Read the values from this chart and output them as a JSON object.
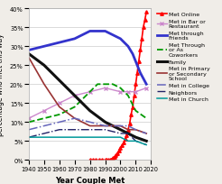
{
  "title": "",
  "xlabel": "Year Couple Met",
  "ylabel": "percentage who met this way",
  "xlim": [
    1940,
    2020
  ],
  "ylim": [
    0,
    40
  ],
  "yticks": [
    0,
    5,
    10,
    15,
    20,
    25,
    30,
    35,
    40
  ],
  "xticks": [
    1940,
    1950,
    1960,
    1970,
    1980,
    1990,
    2000,
    2010,
    2020
  ],
  "series": [
    {
      "label": "Met Online",
      "color": "#FF0000",
      "linestyle": "-",
      "marker": "^",
      "markersize": 2.5,
      "linewidth": 1.2,
      "x": [
        1980,
        1982,
        1984,
        1986,
        1988,
        1990,
        1991,
        1992,
        1993,
        1994,
        1995,
        1996,
        1997,
        1998,
        1999,
        2000,
        2001,
        2002,
        2003,
        2004,
        2005,
        2006,
        2007,
        2008,
        2009,
        2010,
        2011,
        2012,
        2013,
        2014,
        2015,
        2016,
        2017
      ],
      "y": [
        0,
        0,
        0,
        0,
        0,
        0,
        0,
        0,
        0,
        0.2,
        0.5,
        0.8,
        1.2,
        1.8,
        2.5,
        3.2,
        3.8,
        4.5,
        5.5,
        6.5,
        8,
        9.5,
        12,
        14,
        17,
        20,
        23,
        26,
        29,
        32,
        35,
        37,
        39
      ]
    },
    {
      "label": "Met in Bar or\nRestaurant",
      "color": "#CC88CC",
      "linestyle": "-",
      "marker": "x",
      "markersize": 2.5,
      "linewidth": 1.0,
      "x": [
        1940,
        1950,
        1960,
        1970,
        1980,
        1990,
        2000,
        2005,
        2010,
        2017
      ],
      "y": [
        11,
        13,
        15,
        17,
        18,
        19,
        18,
        18,
        18,
        19
      ]
    },
    {
      "label": "Met through\nFriends",
      "color": "#3333CC",
      "linestyle": "-",
      "marker": null,
      "markersize": 0,
      "linewidth": 2.0,
      "x": [
        1940,
        1950,
        1960,
        1970,
        1975,
        1980,
        1985,
        1990,
        1995,
        2000,
        2005,
        2008,
        2010,
        2013,
        2017
      ],
      "y": [
        29,
        30,
        31,
        32,
        33,
        34,
        34,
        34,
        33,
        32,
        30,
        28,
        26,
        23,
        20
      ]
    },
    {
      "label": "Met Through\nor As\nCoworkers",
      "color": "#009900",
      "linestyle": "--",
      "marker": null,
      "markersize": 0,
      "linewidth": 1.3,
      "x": [
        1940,
        1950,
        1960,
        1970,
        1975,
        1980,
        1985,
        1990,
        1995,
        2000,
        2005,
        2010,
        2017
      ],
      "y": [
        10,
        11,
        12,
        14,
        16,
        18,
        20,
        20,
        20,
        19,
        17,
        13,
        11
      ]
    },
    {
      "label": "Family",
      "color": "#111111",
      "linestyle": "-",
      "marker": null,
      "markersize": 0,
      "linewidth": 2.2,
      "x": [
        1940,
        1950,
        1960,
        1970,
        1980,
        1990,
        2000,
        2005,
        2010,
        2017
      ],
      "y": [
        28,
        25,
        21,
        17,
        13,
        10,
        8,
        7,
        6,
        5
      ]
    },
    {
      "label": "Met in Primary\nor Secondary\nSchool",
      "color": "#993333",
      "linestyle": "-",
      "marker": null,
      "markersize": 0,
      "linewidth": 1.2,
      "x": [
        1940,
        1950,
        1960,
        1970,
        1980,
        1990,
        2000,
        2005,
        2010,
        2017
      ],
      "y": [
        27,
        20,
        14,
        11,
        9,
        9,
        9,
        8,
        8,
        7
      ]
    },
    {
      "label": "Met in College",
      "color": "#6666BB",
      "linestyle": "-.",
      "marker": null,
      "markersize": 0,
      "linewidth": 1.1,
      "x": [
        1940,
        1950,
        1960,
        1970,
        1980,
        1990,
        2000,
        2005,
        2010,
        2017
      ],
      "y": [
        8,
        9,
        10,
        11,
        10,
        9,
        9,
        9,
        8,
        7
      ]
    },
    {
      "label": "Neighbors",
      "color": "#222266",
      "linestyle": "-.",
      "marker": null,
      "markersize": 0,
      "linewidth": 1.0,
      "x": [
        1940,
        1950,
        1960,
        1970,
        1980,
        1990,
        2000,
        2005,
        2010,
        2017
      ],
      "y": [
        6,
        7,
        8,
        8,
        8,
        8,
        7,
        7,
        5,
        4
      ]
    },
    {
      "label": "Met in Church",
      "color": "#009999",
      "linestyle": "-",
      "marker": null,
      "markersize": 0,
      "linewidth": 1.1,
      "x": [
        1940,
        1950,
        1960,
        1970,
        1980,
        1990,
        2000,
        2005,
        2010,
        2017
      ],
      "y": [
        6,
        6,
        6,
        6,
        6,
        6,
        6,
        5,
        5,
        4
      ]
    }
  ],
  "bg_color": "#f0ede8",
  "plot_bg": "#ffffff",
  "legend_fontsize": 4.5,
  "axis_fontsize": 5.5,
  "tick_fontsize": 4.8,
  "xlabel_fontsize": 6.0
}
